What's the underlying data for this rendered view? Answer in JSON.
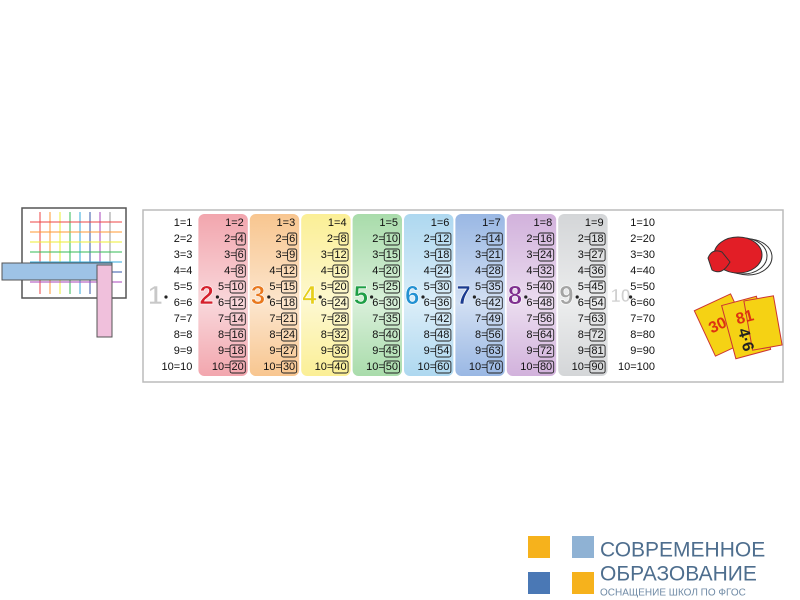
{
  "banner": {
    "columns": [
      {
        "digit": "1",
        "color": "#c8c8c8",
        "bg": "#ffffff",
        "boxed": false,
        "rows": [
          {
            "left": "1=",
            "result": "1"
          },
          {
            "left": "2=",
            "result": "2"
          },
          {
            "left": "3=",
            "result": "3"
          },
          {
            "left": "4=",
            "result": "4"
          },
          {
            "left": "5=",
            "result": "5"
          },
          {
            "left": "6=",
            "result": "6"
          },
          {
            "left": "7=",
            "result": "7"
          },
          {
            "left": "8=",
            "result": "8"
          },
          {
            "left": "9=",
            "result": "9"
          },
          {
            "left": "10=",
            "result": "10"
          }
        ]
      },
      {
        "digit": "2",
        "color": "#d5202c",
        "bg": "#f2a6ae",
        "boxed": true,
        "rows": [
          {
            "left": "1=",
            "result": "2"
          },
          {
            "left": "2=",
            "result": "4"
          },
          {
            "left": "3=",
            "result": "6"
          },
          {
            "left": "4=",
            "result": "8"
          },
          {
            "left": "5=",
            "result": "10"
          },
          {
            "left": "6=",
            "result": "12"
          },
          {
            "left": "7=",
            "result": "14"
          },
          {
            "left": "8=",
            "result": "16"
          },
          {
            "left": "9=",
            "result": "18"
          },
          {
            "left": "10=",
            "result": "20"
          }
        ]
      },
      {
        "digit": "3",
        "color": "#e8781e",
        "bg": "#f8c690",
        "boxed": true,
        "rows": [
          {
            "left": "1=",
            "result": "3"
          },
          {
            "left": "2=",
            "result": "6"
          },
          {
            "left": "3=",
            "result": "9"
          },
          {
            "left": "4=",
            "result": "12"
          },
          {
            "left": "5=",
            "result": "15"
          },
          {
            "left": "6=",
            "result": "18"
          },
          {
            "left": "7=",
            "result": "21"
          },
          {
            "left": "8=",
            "result": "24"
          },
          {
            "left": "9=",
            "result": "27"
          },
          {
            "left": "10=",
            "result": "30"
          }
        ]
      },
      {
        "digit": "4",
        "color": "#e6cf1c",
        "bg": "#fbef96",
        "boxed": true,
        "rows": [
          {
            "left": "1=",
            "result": "4"
          },
          {
            "left": "2=",
            "result": "8"
          },
          {
            "left": "3=",
            "result": "12"
          },
          {
            "left": "4=",
            "result": "16"
          },
          {
            "left": "5=",
            "result": "20"
          },
          {
            "left": "6=",
            "result": "24"
          },
          {
            "left": "7=",
            "result": "28"
          },
          {
            "left": "8=",
            "result": "32"
          },
          {
            "left": "9=",
            "result": "36"
          },
          {
            "left": "10=",
            "result": "40"
          }
        ]
      },
      {
        "digit": "5",
        "color": "#1f9f46",
        "bg": "#a9dcab",
        "boxed": true,
        "rows": [
          {
            "left": "1=",
            "result": "5"
          },
          {
            "left": "2=",
            "result": "10"
          },
          {
            "left": "3=",
            "result": "15"
          },
          {
            "left": "4=",
            "result": "20"
          },
          {
            "left": "5=",
            "result": "25"
          },
          {
            "left": "6=",
            "result": "30"
          },
          {
            "left": "7=",
            "result": "35"
          },
          {
            "left": "8=",
            "result": "40"
          },
          {
            "left": "9=",
            "result": "45"
          },
          {
            "left": "10=",
            "result": "50"
          }
        ]
      },
      {
        "digit": "6",
        "color": "#2391d2",
        "bg": "#aed8f0",
        "boxed": true,
        "rows": [
          {
            "left": "1=",
            "result": "6"
          },
          {
            "left": "2=",
            "result": "12"
          },
          {
            "left": "3=",
            "result": "18"
          },
          {
            "left": "4=",
            "result": "24"
          },
          {
            "left": "5=",
            "result": "30"
          },
          {
            "left": "6=",
            "result": "36"
          },
          {
            "left": "7=",
            "result": "42"
          },
          {
            "left": "8=",
            "result": "48"
          },
          {
            "left": "9=",
            "result": "54"
          },
          {
            "left": "10=",
            "result": "60"
          }
        ]
      },
      {
        "digit": "7",
        "color": "#1b3b8f",
        "bg": "#9ab8e4",
        "boxed": true,
        "rows": [
          {
            "left": "1=",
            "result": "7"
          },
          {
            "left": "2=",
            "result": "14"
          },
          {
            "left": "3=",
            "result": "21"
          },
          {
            "left": "4=",
            "result": "28"
          },
          {
            "left": "5=",
            "result": "35"
          },
          {
            "left": "6=",
            "result": "42"
          },
          {
            "left": "7=",
            "result": "49"
          },
          {
            "left": "8=",
            "result": "56"
          },
          {
            "left": "9=",
            "result": "63"
          },
          {
            "left": "10=",
            "result": "70"
          }
        ]
      },
      {
        "digit": "8",
        "color": "#7f2f8f",
        "bg": "#d2b2dc",
        "boxed": true,
        "rows": [
          {
            "left": "1=",
            "result": "8"
          },
          {
            "left": "2=",
            "result": "16"
          },
          {
            "left": "3=",
            "result": "24"
          },
          {
            "left": "4=",
            "result": "32"
          },
          {
            "left": "5=",
            "result": "40"
          },
          {
            "left": "6=",
            "result": "48"
          },
          {
            "left": "7=",
            "result": "56"
          },
          {
            "left": "8=",
            "result": "64"
          },
          {
            "left": "9=",
            "result": "72"
          },
          {
            "left": "10=",
            "result": "80"
          }
        ]
      },
      {
        "digit": "9",
        "color": "#a4a4a4",
        "bg": "#d4d6d8",
        "boxed": true,
        "rows": [
          {
            "left": "1=",
            "result": "9"
          },
          {
            "left": "2=",
            "result": "18"
          },
          {
            "left": "3=",
            "result": "27"
          },
          {
            "left": "4=",
            "result": "36"
          },
          {
            "left": "5=",
            "result": "45"
          },
          {
            "left": "6=",
            "result": "54"
          },
          {
            "left": "7=",
            "result": "63"
          },
          {
            "left": "8=",
            "result": "72"
          },
          {
            "left": "9=",
            "result": "81"
          },
          {
            "left": "10=",
            "result": "90"
          }
        ]
      },
      {
        "digit": "10",
        "color": "#d0d0d0",
        "bg": "#ffffff",
        "boxed": false,
        "rows": [
          {
            "left": "1=",
            "result": "10"
          },
          {
            "left": "2=",
            "result": "20"
          },
          {
            "left": "3=",
            "result": "30"
          },
          {
            "left": "4=",
            "result": "40"
          },
          {
            "left": "5=",
            "result": "50"
          },
          {
            "left": "6=",
            "result": "60"
          },
          {
            "left": "7=",
            "result": "70"
          },
          {
            "left": "8=",
            "result": "80"
          },
          {
            "left": "9=",
            "result": "90"
          },
          {
            "left": "10=",
            "result": "100"
          }
        ]
      }
    ]
  },
  "cards": [
    "30",
    "81",
    "4·6"
  ],
  "logo": {
    "line1": "СОВРЕМЕННОЕ",
    "line2": "ОБРАЗОВАНИЕ",
    "tagline": "ОСНАЩЕНИЕ ШКОЛ ПО ФГОС"
  }
}
